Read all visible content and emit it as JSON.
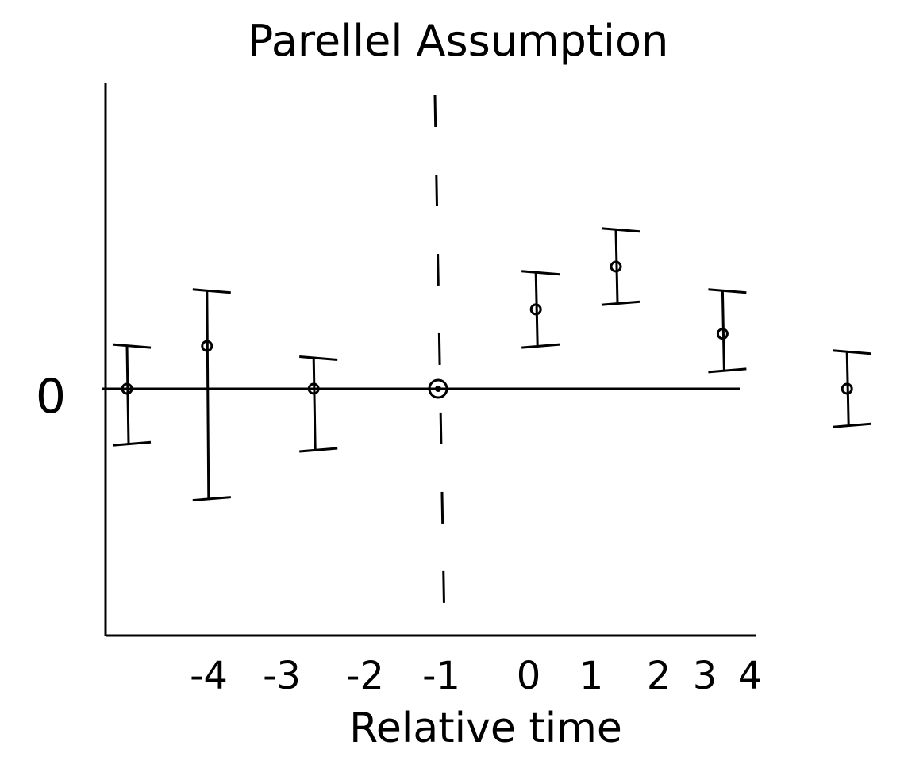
{
  "chart_data": {
    "type": "scatter",
    "title": "Parellel Assumption",
    "xlabel": "Relative time",
    "ylabel": "",
    "y_tick_labels": [
      "0"
    ],
    "x_tick_labels": [
      "-4",
      "-3",
      "-2",
      "-1",
      "0",
      "1",
      "2",
      "3",
      "4"
    ],
    "ylim": [
      -5,
      5
    ],
    "reference_line": {
      "x": -1,
      "style": "dashed"
    },
    "grid": false,
    "points": [
      {
        "x": -4.5,
        "y": 0.0,
        "lo": -0.9,
        "hi": 0.7
      },
      {
        "x": -3.6,
        "y": 0.7,
        "lo": -1.8,
        "hi": 1.6
      },
      {
        "x": -2.4,
        "y": 0.0,
        "lo": -1.0,
        "hi": 0.5
      },
      {
        "x": -1.0,
        "y": 0.0,
        "lo": 0.0,
        "hi": 0.0
      },
      {
        "x": 0.1,
        "y": 1.3,
        "lo": 0.7,
        "hi": 1.9
      },
      {
        "x": 1.0,
        "y": 2.0,
        "lo": 1.4,
        "hi": 2.6
      },
      {
        "x": 2.2,
        "y": 0.9,
        "lo": 0.3,
        "hi": 1.6
      },
      {
        "x": 3.6,
        "y": 0.0,
        "lo": -0.6,
        "hi": 0.6
      }
    ]
  }
}
